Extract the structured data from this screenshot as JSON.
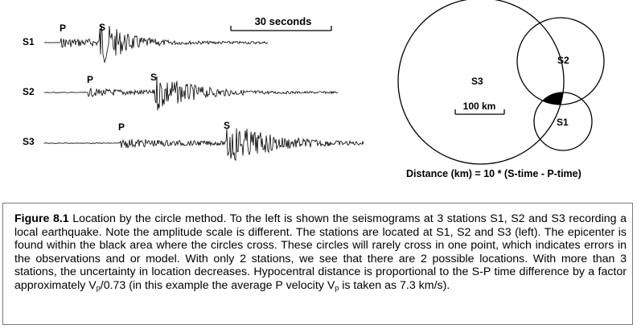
{
  "seismograms": {
    "stations": [
      {
        "name": "S1",
        "p_label": "P",
        "s_label": "S"
      },
      {
        "name": "S2",
        "p_label": "P",
        "s_label": "S"
      },
      {
        "name": "S3",
        "p_label": "P",
        "s_label": "S"
      }
    ],
    "time_scale_label": "30 seconds"
  },
  "map": {
    "circles": [
      {
        "label": "S3"
      },
      {
        "label": "S2"
      },
      {
        "label": "S1"
      }
    ],
    "scale_bar_label": "100 km",
    "epicenter_color": "#000000",
    "formula": "Distance (km) = 10 * (S-time -  P-time)"
  },
  "caption": {
    "label": "Figure 8.1",
    "part1": "  Location by the circle method. To the left is shown the seismograms at 3 stations S1, S2 and S3 recording a local earthquake. Note the amplitude scale is different. The stations are located at S1, S2 and S3 (left). The epicenter is found within the black area where the circles cross. These circles will rarely cross in one point, which indicates errors in the observations and or model. With only 2 stations, we see that there are 2 possible locations. With more than 3 stations, the uncertainty in location decreases. Hypocentral distance is proportional to the S-P time difference by a factor approximately V",
    "sub1": "p",
    "part2": "/0.73 (in this example the average P velocity V",
    "sub2": "p",
    "part3": " is taken as 7.3 km/s)."
  }
}
